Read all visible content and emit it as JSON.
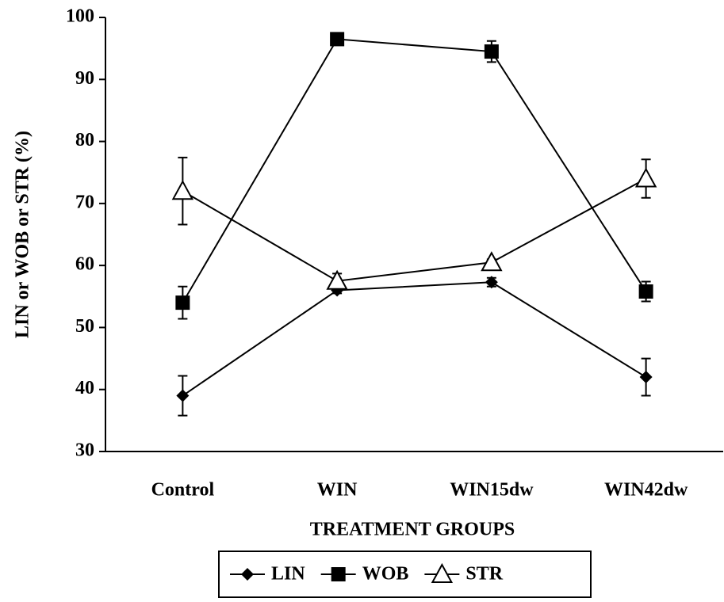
{
  "chart_data": {
    "type": "line",
    "categories": [
      "Control",
      "WIN",
      "WIN15dw",
      "WIN42dw"
    ],
    "series": [
      {
        "name": "LIN",
        "color": "#000000",
        "marker": "diamond",
        "values": [
          39,
          56,
          57.3,
          42
        ],
        "errors": [
          3.2,
          0.5,
          0.7,
          3
        ]
      },
      {
        "name": "WOB",
        "color": "#000000",
        "marker": "square",
        "values": [
          54,
          96.5,
          94.5,
          55.8
        ],
        "errors": [
          2.6,
          0.5,
          1.7,
          1.6
        ]
      },
      {
        "name": "STR",
        "color": "#000000",
        "marker": "triangle",
        "values": [
          72,
          57.5,
          60.5,
          74
        ],
        "errors": [
          5.4,
          1.2,
          0.5,
          3.1
        ]
      }
    ],
    "ylabel": "LIN or WOB or STR (%)",
    "xlabel": "TREATMENT GROUPS",
    "ylim": [
      30,
      100
    ],
    "yticks": [
      30,
      40,
      50,
      60,
      70,
      80,
      90,
      100
    ],
    "grid": false,
    "legend": "bottom"
  }
}
